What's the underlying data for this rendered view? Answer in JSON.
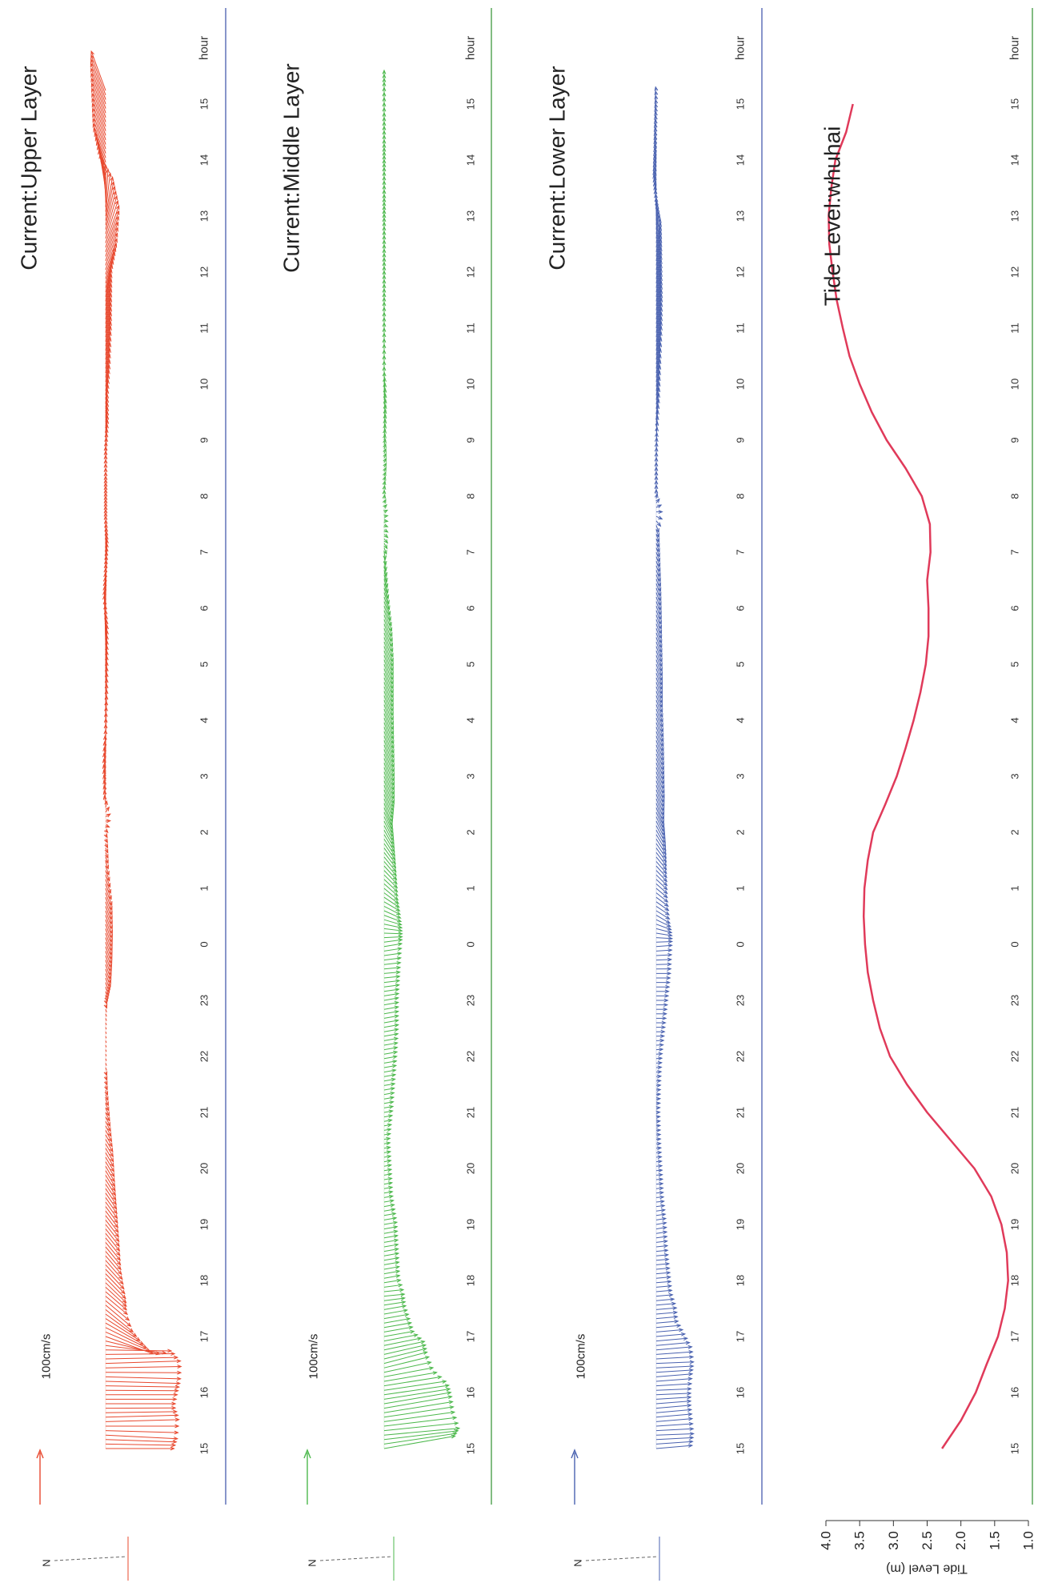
{
  "hour_ticks": [
    "15",
    "16",
    "17",
    "18",
    "19",
    "20",
    "21",
    "22",
    "23",
    "0",
    "1",
    "2",
    "3",
    "4",
    "5",
    "6",
    "7",
    "8",
    "9",
    "10",
    "11",
    "12",
    "13",
    "14",
    "15"
  ],
  "panels": [
    {
      "id": "upper",
      "title": "Current:Upper Layer",
      "unit_label": "100cm/s",
      "hour_label": "hour",
      "north_label": "N",
      "color": "#e8482e"
    },
    {
      "id": "middle",
      "title": "Current:Middle Layer",
      "unit_label": "100cm/s",
      "hour_label": "hour",
      "north_label": "N",
      "color": "#4cb84c"
    },
    {
      "id": "lower",
      "title": "Current:Lower Layer",
      "unit_label": "100cm/s",
      "hour_label": "hour",
      "north_label": "N",
      "color": "#4a62b0"
    },
    {
      "id": "tide",
      "title": "Tide Level:whuhai",
      "hour_label": "hour",
      "ylabel": "Tide Level (m)",
      "color": "#e03a5a"
    }
  ],
  "chart_data": [
    {
      "type": "scatter",
      "title": "Current:Upper Layer",
      "xlabel": "hour",
      "x_ticks": [
        "15",
        "16",
        "17",
        "18",
        "19",
        "20",
        "21",
        "22",
        "23",
        "0",
        "1",
        "2",
        "3",
        "4",
        "5",
        "6",
        "7",
        "8",
        "9",
        "10",
        "11",
        "12",
        "13",
        "14",
        "15"
      ],
      "scale_label": "100cm/s",
      "series": [
        {
          "hour_offset": [
            0.0,
            0.25,
            0.5,
            0.75,
            1.0,
            1.25,
            1.5,
            1.75,
            2.0,
            2.25,
            2.5,
            2.75,
            3.0,
            3.5,
            4.0,
            4.5,
            5.0,
            5.5,
            6.0,
            6.5,
            7.0,
            7.5,
            8.0,
            8.5,
            9.0,
            9.5,
            10.0,
            10.5,
            11.0,
            11.5,
            12.0,
            12.5,
            13.0,
            13.5,
            14.0,
            14.5,
            15.0,
            15.5,
            16.0,
            16.5,
            17.0,
            17.5,
            18.0,
            18.5,
            19.0,
            19.5,
            20.0,
            20.5,
            21.0,
            21.5,
            22.0,
            22.5,
            23.0,
            23.5,
            24.0,
            24.25
          ],
          "speed_cm_s": [
            95,
            100,
            102,
            96,
            100,
            104,
            105,
            92,
            70,
            60,
            48,
            38,
            40,
            33,
            30,
            27,
            25,
            20,
            13,
            6,
            3,
            3,
            5,
            20,
            25,
            27,
            25,
            10,
            4,
            10,
            16,
            27,
            38,
            48,
            54,
            58,
            58,
            55,
            50,
            40,
            30,
            28,
            28,
            26,
            30,
            40,
            42,
            45,
            45,
            55,
            55,
            48,
            50,
            55,
            60,
            58
          ],
          "direction_deg": [
            180,
            183,
            178,
            180,
            180,
            182,
            178,
            180,
            200,
            210,
            220,
            220,
            225,
            230,
            232,
            235,
            240,
            240,
            245,
            250,
            250,
            250,
            250,
            250,
            250,
            250,
            250,
            250,
            240,
            80,
            80,
            90,
            92,
            92,
            92,
            88,
            90,
            92,
            90,
            90,
            90,
            90,
            95,
            95,
            100,
            100,
            100,
            100,
            110,
            110,
            100,
            80,
            70,
            70,
            70,
            70
          ]
        }
      ]
    },
    {
      "type": "scatter",
      "title": "Current:Middle Layer",
      "xlabel": "hour",
      "x_ticks": [
        "15",
        "16",
        "17",
        "18",
        "19",
        "20",
        "21",
        "22",
        "23",
        "0",
        "1",
        "2",
        "3",
        "4",
        "5",
        "6",
        "7",
        "8",
        "9",
        "10",
        "11",
        "12",
        "13",
        "14",
        "15"
      ],
      "scale_label": "100cm/s",
      "series": [
        {
          "hour_offset": [
            0.0,
            0.25,
            0.5,
            0.75,
            1.0,
            1.25,
            1.5,
            1.75,
            2.0,
            2.25,
            2.5,
            2.75,
            3.0,
            3.5,
            4.0,
            4.5,
            5.0,
            5.5,
            6.0,
            6.5,
            7.0,
            7.5,
            8.0,
            8.5,
            9.0,
            9.5,
            10.0,
            10.5,
            11.0,
            11.5,
            12.0,
            12.5,
            13.0,
            13.5,
            14.0,
            14.5,
            15.0,
            15.5,
            16.0,
            16.5,
            17.0,
            17.5,
            18.0,
            18.5,
            19.0,
            19.5,
            20.0,
            20.5,
            21.0,
            21.5,
            22.0,
            22.5,
            23.0,
            23.5,
            24.0,
            24.25
          ],
          "speed_cm_s": [
            100,
            105,
            98,
            95,
            90,
            70,
            62,
            58,
            42,
            36,
            30,
            28,
            22,
            20,
            18,
            12,
            10,
            8,
            12,
            15,
            18,
            20,
            20,
            22,
            25,
            25,
            25,
            26,
            28,
            32,
            40,
            40,
            38,
            36,
            36,
            36,
            30,
            20,
            10,
            5,
            5,
            6,
            8,
            12,
            20,
            30,
            36,
            36,
            35,
            35,
            30,
            30,
            25,
            25,
            30,
            28
          ],
          "direction_deg": [
            170,
            175,
            172,
            170,
            172,
            170,
            165,
            168,
            170,
            170,
            170,
            175,
            170,
            170,
            170,
            170,
            170,
            170,
            170,
            170,
            170,
            170,
            170,
            175,
            170,
            200,
            220,
            230,
            240,
            250,
            250,
            250,
            250,
            250,
            250,
            250,
            250,
            255,
            260,
            200,
            90,
            120,
            100,
            100,
            90,
            90,
            90,
            90,
            90,
            90,
            90,
            90,
            90,
            90,
            90,
            90
          ]
        }
      ]
    },
    {
      "type": "scatter",
      "title": "Current:Lower Layer",
      "xlabel": "hour",
      "x_ticks": [
        "15",
        "16",
        "17",
        "18",
        "19",
        "20",
        "21",
        "22",
        "23",
        "0",
        "1",
        "2",
        "3",
        "4",
        "5",
        "6",
        "7",
        "8",
        "9",
        "10",
        "11",
        "12",
        "13",
        "14",
        "15"
      ],
      "scale_label": "100cm/s",
      "series": [
        {
          "hour_offset": [
            0.0,
            0.25,
            0.5,
            0.75,
            1.0,
            1.25,
            1.5,
            1.75,
            2.0,
            2.25,
            2.5,
            2.75,
            3.0,
            3.5,
            4.0,
            4.5,
            5.0,
            5.5,
            6.0,
            6.5,
            7.0,
            7.5,
            8.0,
            8.5,
            9.0,
            9.5,
            10.0,
            10.5,
            11.0,
            11.5,
            12.0,
            12.5,
            13.0,
            13.5,
            14.0,
            14.5,
            15.0,
            15.5,
            16.0,
            16.5,
            17.0,
            17.5,
            18.0,
            18.5,
            19.0,
            19.5,
            20.0,
            20.5,
            21.0,
            21.5,
            22.0,
            22.5,
            23.0,
            23.5,
            24.0,
            24.25
          ],
          "speed_cm_s": [
            50,
            52,
            50,
            48,
            48,
            50,
            52,
            50,
            40,
            30,
            28,
            22,
            20,
            16,
            14,
            10,
            8,
            6,
            5,
            6,
            8,
            12,
            16,
            20,
            22,
            22,
            20,
            22,
            26,
            30,
            32,
            30,
            28,
            24,
            24,
            22,
            20,
            18,
            14,
            10,
            6,
            6,
            10,
            20,
            30,
            40,
            42,
            40,
            38,
            34,
            25,
            20,
            14,
            10,
            6,
            5
          ],
          "direction_deg": [
            175,
            178,
            175,
            175,
            178,
            175,
            178,
            175,
            175,
            175,
            175,
            175,
            175,
            175,
            170,
            175,
            175,
            175,
            175,
            175,
            175,
            180,
            180,
            180,
            175,
            210,
            220,
            230,
            240,
            250,
            250,
            250,
            250,
            250,
            250,
            250,
            250,
            250,
            250,
            250,
            90,
            90,
            95,
            100,
            100,
            100,
            100,
            100,
            100,
            100,
            90,
            80,
            80,
            80,
            80,
            80
          ]
        }
      ]
    },
    {
      "type": "line",
      "title": "Tide Level:whuhai",
      "xlabel": "hour",
      "ylabel": "Tide Level (m)",
      "x_ticks": [
        "15",
        "16",
        "17",
        "18",
        "19",
        "20",
        "21",
        "22",
        "23",
        "0",
        "1",
        "2",
        "3",
        "4",
        "5",
        "6",
        "7",
        "8",
        "9",
        "10",
        "11",
        "12",
        "13",
        "14",
        "15"
      ],
      "yticks": [
        "4.0",
        "3.5",
        "3.0",
        "2.5",
        "2.0",
        "1.5",
        "1.0"
      ],
      "ylim": [
        1.0,
        4.0
      ],
      "series": [
        {
          "name": "Tide Level",
          "hour_offset": [
            0,
            0.5,
            1.0,
            1.5,
            2.0,
            2.5,
            3.0,
            3.5,
            4.0,
            4.5,
            5.0,
            5.5,
            6.0,
            6.5,
            7.0,
            7.5,
            8.0,
            8.5,
            9.0,
            9.5,
            10.0,
            10.5,
            11.0,
            11.5,
            12.0,
            12.5,
            13.0,
            13.5,
            14.0,
            14.5,
            15.0,
            15.5,
            16.0,
            16.5,
            17.0,
            17.5,
            18.0,
            18.5,
            19.0,
            19.5,
            20.0,
            20.5,
            21.0,
            21.5,
            22.0,
            22.5,
            23.0,
            23.5,
            24.0
          ],
          "values": [
            2.28,
            2.0,
            1.78,
            1.62,
            1.45,
            1.35,
            1.3,
            1.32,
            1.4,
            1.55,
            1.8,
            2.15,
            2.5,
            2.8,
            3.05,
            3.2,
            3.3,
            3.38,
            3.42,
            3.44,
            3.43,
            3.38,
            3.3,
            3.12,
            2.95,
            2.82,
            2.7,
            2.6,
            2.52,
            2.48,
            2.48,
            2.5,
            2.45,
            2.46,
            2.58,
            2.82,
            3.1,
            3.32,
            3.5,
            3.65,
            3.75,
            3.84,
            3.9,
            3.95,
            3.96,
            3.92,
            3.86,
            3.7,
            3.6
          ]
        }
      ]
    }
  ]
}
